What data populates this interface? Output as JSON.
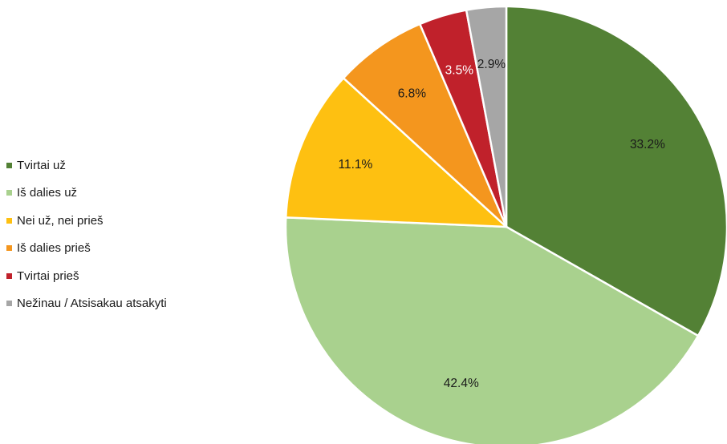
{
  "chart_data": {
    "type": "pie",
    "slices": [
      {
        "label": "Tvirtai už",
        "value": 33.2,
        "display": "33.2%",
        "color": "#538135",
        "label_color": "#1a1a1a"
      },
      {
        "label": "Iš dalies už",
        "value": 42.4,
        "display": "42.4%",
        "color": "#a9d18e",
        "label_color": "#1a1a1a"
      },
      {
        "label": "Nei už, nei prieš",
        "value": 11.1,
        "display": "11.1%",
        "color": "#fec011",
        "label_color": "#1a1a1a"
      },
      {
        "label": "Iš dalies prieš",
        "value": 6.8,
        "display": "6.8%",
        "color": "#f4961e",
        "label_color": "#1a1a1a"
      },
      {
        "label": "Tvirtai prieš",
        "value": 3.5,
        "display": "3.5%",
        "color": "#c0212b",
        "label_color": "#ffffff"
      },
      {
        "label": "Nežinau / Atsisakau atsakyti",
        "value": 2.9,
        "display": "2.9%",
        "color": "#a6a6a6",
        "label_color": "#1a1a1a"
      }
    ],
    "legend_position": "left",
    "start": "12 o'clock, clockwise"
  }
}
